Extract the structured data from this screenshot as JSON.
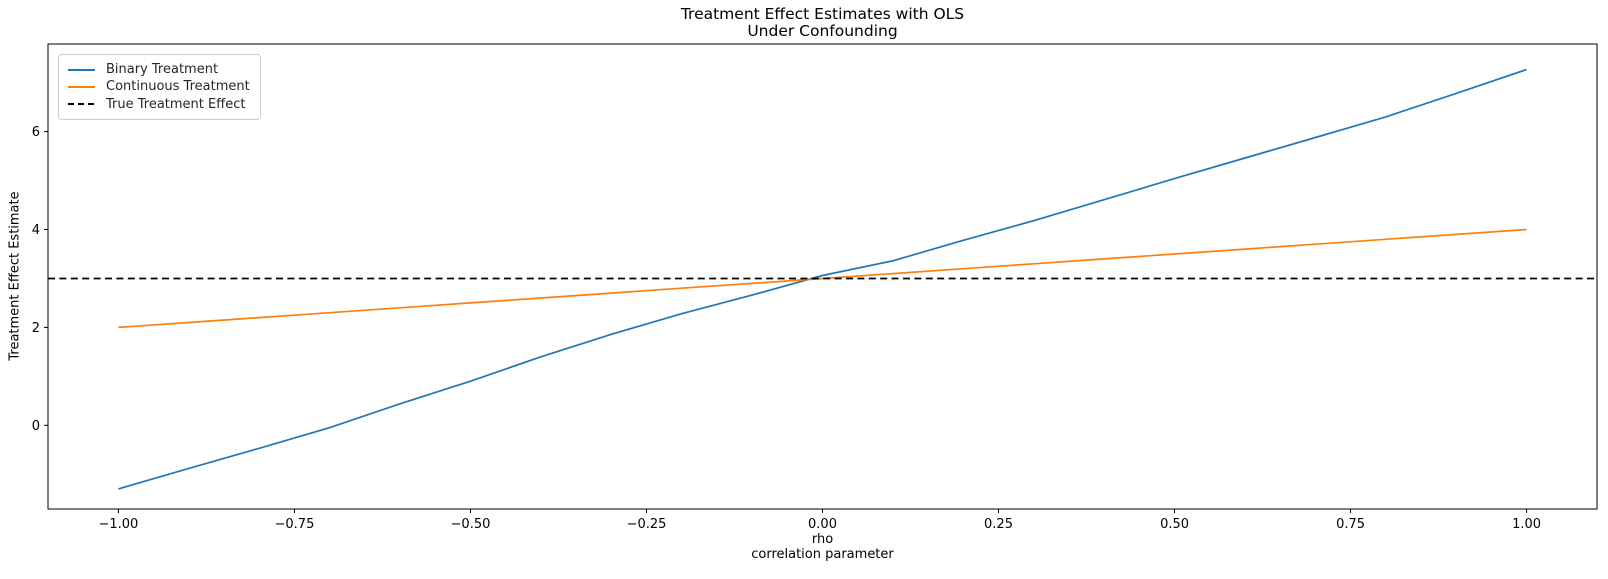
{
  "chart": {
    "title_line1": "Treatment Effect Estimates with OLS",
    "title_line2": "Under Confounding",
    "xlabel_line1": "rho",
    "xlabel_line2": "correlation parameter",
    "ylabel": "Treatment Effect Estimate",
    "colors": {
      "binary_line": "#1f77b4",
      "continuous_line": "#ff7f0e",
      "true_effect_line": "#000000",
      "axis": "#000000",
      "legend_border": "#cccccc",
      "background": "#ffffff"
    }
  },
  "chart_data": {
    "type": "line",
    "title": "Treatment Effect Estimates with OLS\nUnder Confounding",
    "xlabel": "rho\ncorrelation parameter",
    "ylabel": "Treatment Effect Estimate",
    "xlim": [
      -1.1,
      1.1
    ],
    "ylim": [
      -1.71,
      7.79
    ],
    "grid": false,
    "legend_position": "upper left",
    "x_ticks": [
      -1.0,
      -0.75,
      -0.5,
      -0.25,
      0.0,
      0.25,
      0.5,
      0.75,
      1.0
    ],
    "x_tick_labels": [
      "−1.00",
      "−0.75",
      "−0.50",
      "−0.25",
      "0.00",
      "0.25",
      "0.50",
      "0.75",
      "1.00"
    ],
    "y_ticks": [
      0,
      2,
      4,
      6
    ],
    "y_tick_labels": [
      "0",
      "2",
      "4",
      "6"
    ],
    "x": [
      -1.0,
      -0.9,
      -0.8,
      -0.7,
      -0.6,
      -0.5,
      -0.4,
      -0.3,
      -0.2,
      -0.1,
      0.0,
      0.1,
      0.2,
      0.3,
      0.4,
      0.5,
      0.6,
      0.7,
      0.8,
      0.9,
      1.0
    ],
    "series": [
      {
        "name": "Binary Treatment",
        "color": "#1f77b4",
        "style": "solid",
        "values": [
          -1.3,
          -0.88,
          -0.47,
          -0.05,
          0.44,
          0.9,
          1.4,
          1.86,
          2.28,
          2.66,
          3.06,
          3.36,
          3.78,
          4.18,
          4.61,
          5.04,
          5.46,
          5.88,
          6.3,
          6.78,
          7.27
        ]
      },
      {
        "name": "Continuous Treatment",
        "color": "#ff7f0e",
        "style": "solid",
        "values": [
          2.0,
          2.1,
          2.2,
          2.3,
          2.4,
          2.5,
          2.6,
          2.7,
          2.8,
          2.9,
          3.0,
          3.1,
          3.2,
          3.3,
          3.4,
          3.5,
          3.6,
          3.7,
          3.8,
          3.9,
          4.0
        ]
      },
      {
        "name": "True Treatment Effect",
        "color": "#000000",
        "style": "dashed",
        "x": [
          -1.1,
          1.1
        ],
        "values": [
          3.0,
          3.0
        ]
      }
    ]
  }
}
